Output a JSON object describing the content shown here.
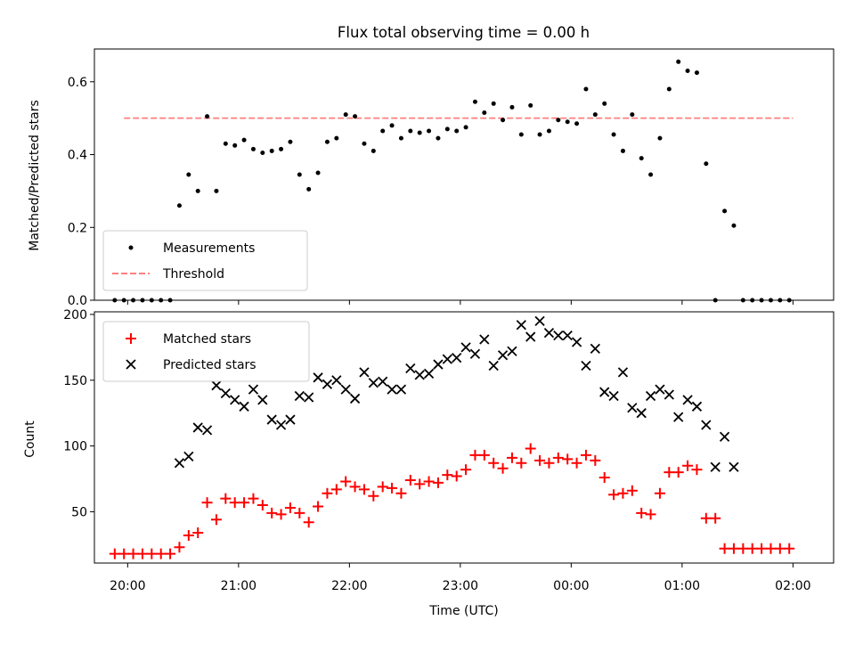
{
  "chart_data": [
    {
      "type": "scatter",
      "title": "Flux total observing time = 0.00 h",
      "xlabel": "",
      "ylabel": "Matched/Predicted stars",
      "xlim": [
        "19:42",
        "02:22"
      ],
      "ylim": [
        0,
        0.69
      ],
      "y_ticks": [
        "0.0",
        "0.2",
        "0.4",
        "0.6"
      ],
      "grid": false,
      "legend_position": "lower-left",
      "colors": {
        "measurements": "#000000",
        "threshold": "#ff7f7f"
      },
      "series": [
        {
          "name": "Measurements",
          "marker": "dot",
          "x": [
            "19:53",
            "19:58",
            "20:03",
            "20:08",
            "20:13",
            "20:18",
            "20:23",
            "20:28",
            "20:33",
            "20:38",
            "20:43",
            "20:48",
            "20:53",
            "20:58",
            "21:03",
            "21:08",
            "21:13",
            "21:18",
            "21:23",
            "21:28",
            "21:33",
            "21:38",
            "21:43",
            "21:48",
            "21:53",
            "21:58",
            "22:03",
            "22:08",
            "22:13",
            "22:18",
            "22:23",
            "22:28",
            "22:33",
            "22:38",
            "22:43",
            "22:48",
            "22:53",
            "22:58",
            "23:03",
            "23:08",
            "23:13",
            "23:18",
            "23:23",
            "23:28",
            "23:33",
            "23:38",
            "23:43",
            "23:48",
            "23:53",
            "23:58",
            "00:03",
            "00:08",
            "00:13",
            "00:18",
            "00:23",
            "00:28",
            "00:33",
            "00:38",
            "00:43",
            "00:48",
            "00:53",
            "00:58",
            "01:03",
            "01:08",
            "01:13",
            "01:18",
            "01:23",
            "01:28",
            "01:33",
            "01:38",
            "01:43",
            "01:48",
            "01:53",
            "01:58"
          ],
          "y": [
            0.0,
            0.0,
            0.0,
            0.0,
            0.0,
            0.0,
            0.0,
            0.26,
            0.345,
            0.3,
            0.505,
            0.3,
            0.43,
            0.425,
            0.44,
            0.415,
            0.405,
            0.41,
            0.415,
            0.435,
            0.345,
            0.305,
            0.35,
            0.435,
            0.445,
            0.51,
            0.505,
            0.43,
            0.41,
            0.465,
            0.48,
            0.445,
            0.465,
            0.46,
            0.465,
            0.445,
            0.47,
            0.465,
            0.475,
            0.545,
            0.515,
            0.54,
            0.495,
            0.53,
            0.455,
            0.535,
            0.455,
            0.465,
            0.495,
            0.49,
            0.485,
            0.58,
            0.51,
            0.54,
            0.455,
            0.41,
            0.51,
            0.39,
            0.345,
            0.445,
            0.58,
            0.655,
            0.63,
            0.625,
            0.375,
            0.0,
            0.245,
            0.205,
            0.0,
            0.0,
            0.0,
            0.0,
            0.0,
            0.0
          ]
        },
        {
          "name": "Threshold",
          "style": "dashed",
          "x": [
            "19:58",
            "02:00"
          ],
          "y": [
            0.5,
            0.5
          ]
        }
      ]
    },
    {
      "type": "scatter",
      "title": "",
      "xlabel": "Time (UTC)",
      "ylabel": "Count",
      "xlim": [
        "19:42",
        "02:22"
      ],
      "ylim": [
        11,
        202
      ],
      "y_ticks": [
        "50",
        "100",
        "150",
        "200"
      ],
      "x_ticks": [
        "20:00",
        "21:00",
        "22:00",
        "23:00",
        "00:00",
        "01:00",
        "02:00"
      ],
      "grid": false,
      "legend_position": "upper-left",
      "colors": {
        "matched": "#ff0000",
        "predicted": "#000000"
      },
      "series": [
        {
          "name": "Matched stars",
          "marker": "plus",
          "x": [
            "19:53",
            "19:58",
            "20:03",
            "20:08",
            "20:13",
            "20:18",
            "20:23",
            "20:28",
            "20:33",
            "20:38",
            "20:43",
            "20:48",
            "20:53",
            "20:58",
            "21:03",
            "21:08",
            "21:13",
            "21:18",
            "21:23",
            "21:28",
            "21:33",
            "21:38",
            "21:43",
            "21:48",
            "21:53",
            "21:58",
            "22:03",
            "22:08",
            "22:13",
            "22:18",
            "22:23",
            "22:28",
            "22:33",
            "22:38",
            "22:43",
            "22:48",
            "22:53",
            "22:58",
            "23:03",
            "23:08",
            "23:13",
            "23:18",
            "23:23",
            "23:28",
            "23:33",
            "23:38",
            "23:43",
            "23:48",
            "23:53",
            "23:58",
            "00:03",
            "00:08",
            "00:13",
            "00:18",
            "00:23",
            "00:28",
            "00:33",
            "00:38",
            "00:43",
            "00:48",
            "00:53",
            "00:58",
            "01:03",
            "01:08",
            "01:13",
            "01:18",
            "01:23",
            "01:28",
            "01:33",
            "01:38",
            "01:43",
            "01:48",
            "01:53",
            "01:58"
          ],
          "y": [
            18,
            18,
            18,
            18,
            18,
            18,
            18,
            23,
            32,
            34,
            57,
            44,
            60,
            57,
            57,
            60,
            55,
            49,
            48,
            53,
            49,
            42,
            54,
            64,
            67,
            73,
            69,
            67,
            62,
            69,
            68,
            64,
            74,
            71,
            73,
            72,
            78,
            77,
            82,
            93,
            93,
            87,
            83,
            91,
            87,
            98,
            89,
            87,
            91,
            90,
            87,
            93,
            89,
            76,
            63,
            64,
            66,
            49,
            48,
            64,
            80,
            80,
            85,
            82,
            45,
            45,
            22,
            22,
            22,
            22,
            22,
            22,
            22,
            22
          ]
        },
        {
          "name": "Predicted stars",
          "marker": "x",
          "x": [
            "20:28",
            "20:33",
            "20:38",
            "20:43",
            "20:48",
            "20:53",
            "20:58",
            "21:03",
            "21:08",
            "21:13",
            "21:18",
            "21:23",
            "21:28",
            "21:33",
            "21:38",
            "21:43",
            "21:48",
            "21:53",
            "21:58",
            "22:03",
            "22:08",
            "22:13",
            "22:18",
            "22:23",
            "22:28",
            "22:33",
            "22:38",
            "22:43",
            "22:48",
            "22:53",
            "22:58",
            "23:03",
            "23:08",
            "23:13",
            "23:18",
            "23:23",
            "23:28",
            "23:33",
            "23:38",
            "23:43",
            "23:48",
            "23:53",
            "23:58",
            "00:03",
            "00:08",
            "00:13",
            "00:18",
            "00:23",
            "00:28",
            "00:33",
            "00:38",
            "00:43",
            "00:48",
            "00:53",
            "00:58",
            "01:03",
            "01:08",
            "01:13",
            "01:18",
            "01:23",
            "01:28"
          ],
          "y": [
            87,
            92,
            114,
            112,
            146,
            140,
            135,
            130,
            143,
            135,
            120,
            116,
            120,
            138,
            137,
            152,
            147,
            150,
            143,
            136,
            156,
            148,
            149,
            143,
            143,
            159,
            154,
            155,
            162,
            166,
            167,
            175,
            170,
            181,
            161,
            169,
            172,
            192,
            183,
            195,
            186,
            184,
            184,
            179,
            161,
            174,
            141,
            138,
            156,
            129,
            125,
            138,
            143,
            139,
            122,
            135,
            130,
            116,
            84,
            107,
            84
          ]
        }
      ]
    }
  ]
}
